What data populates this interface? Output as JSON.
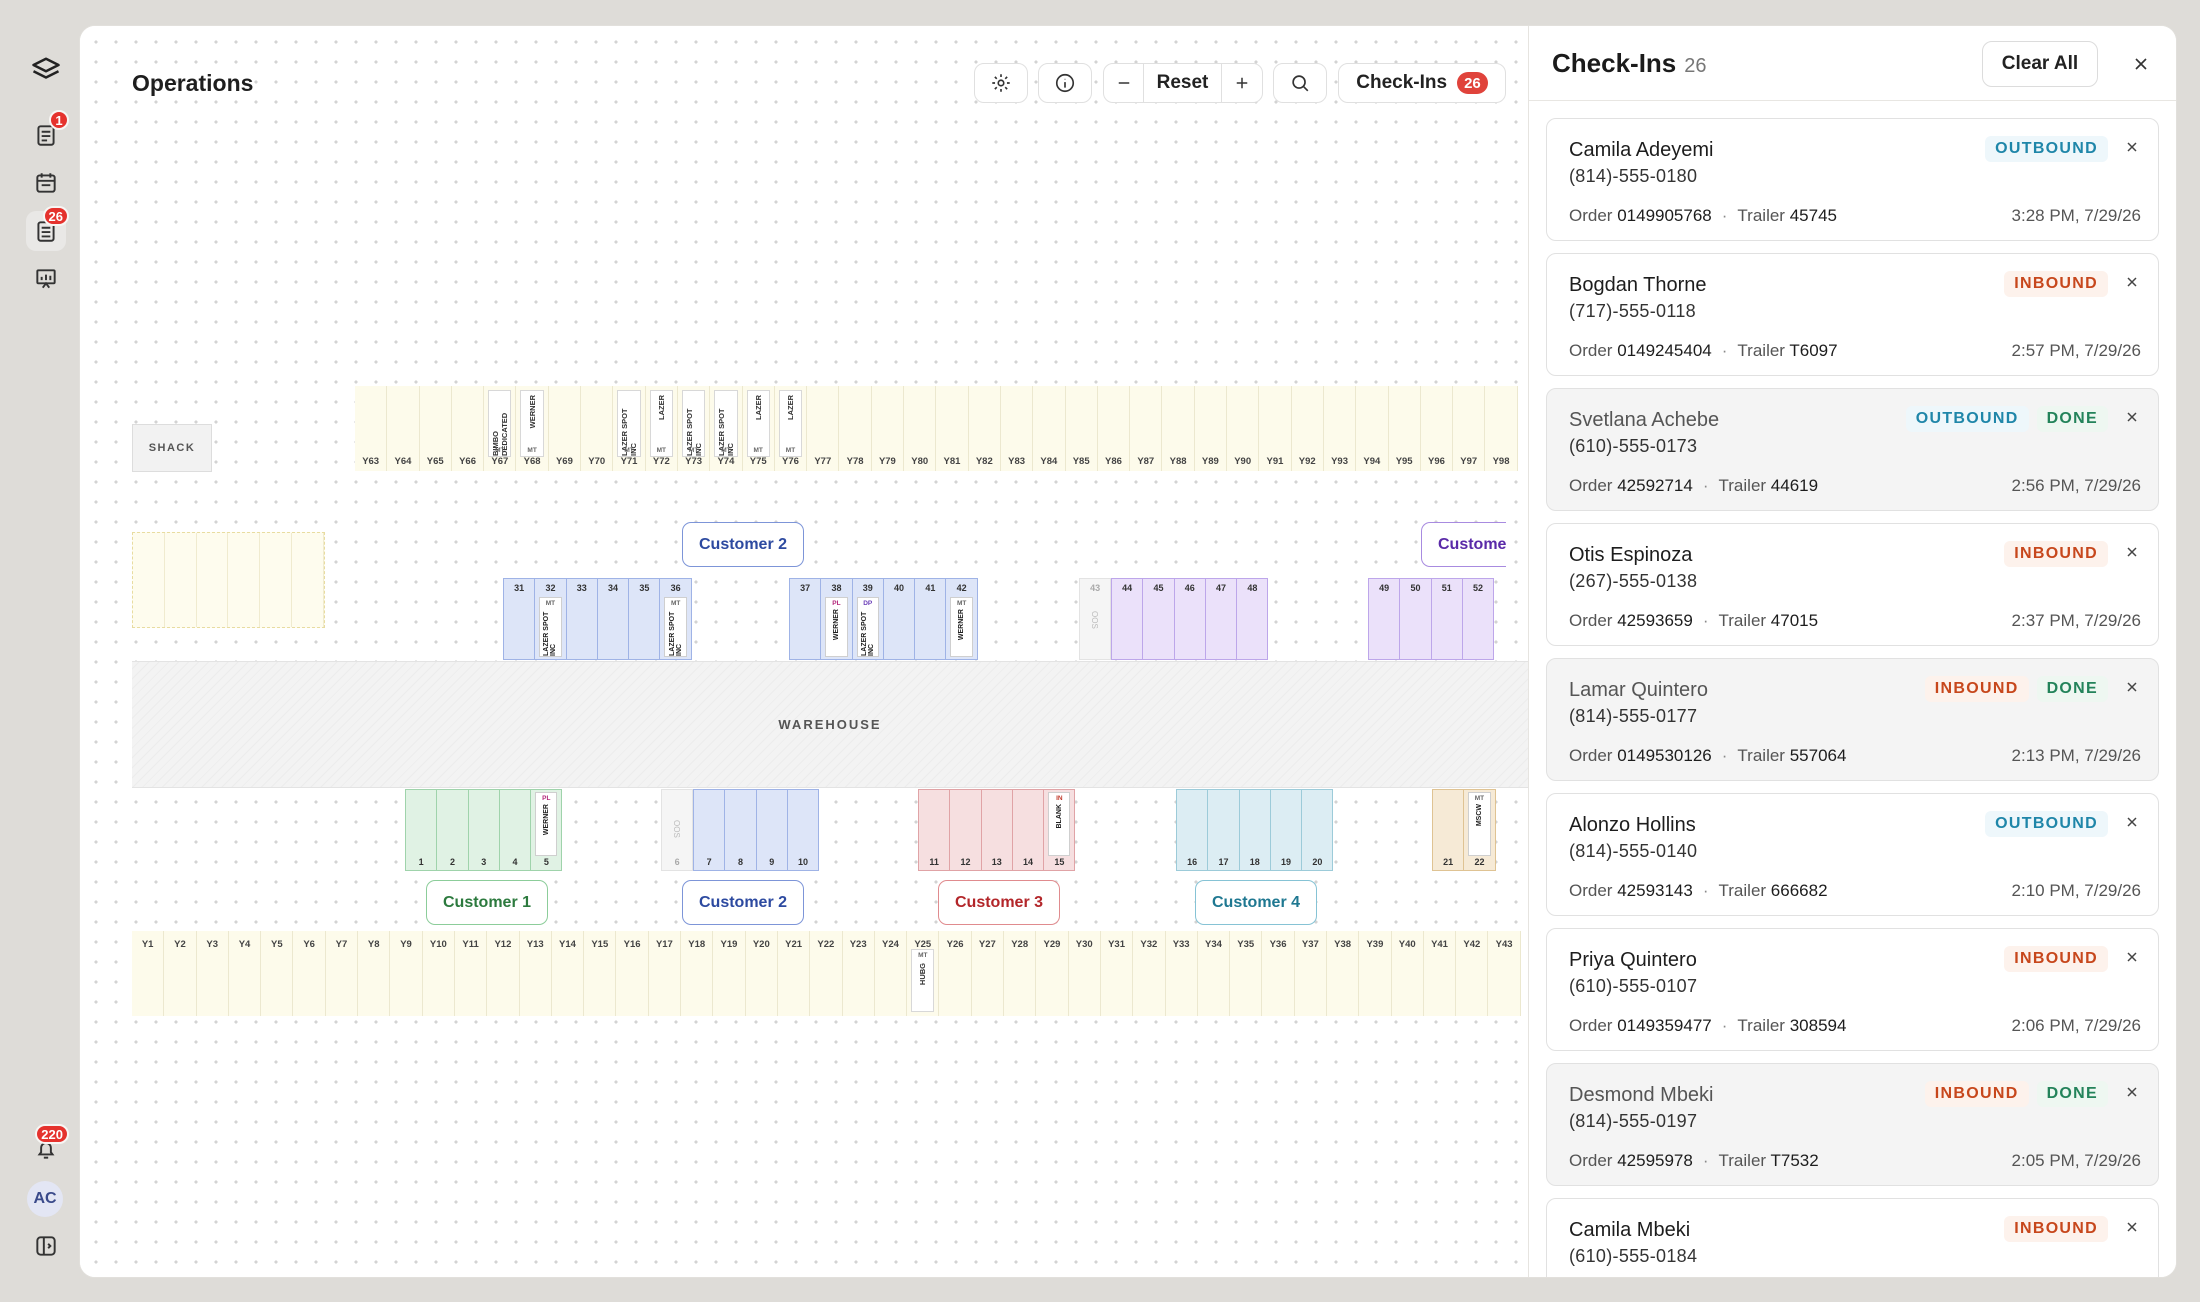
{
  "ops": {
    "title": "Operations",
    "toolbar": {
      "reset_label": "Reset",
      "checkins_label": "Check-Ins",
      "checkins_count": "26"
    }
  },
  "rail": {
    "badge_checklist": "1",
    "badge_board": "26",
    "badge_alerts": "220",
    "avatar": "AC"
  },
  "map": {
    "shack_label": "SHACK",
    "warehouse_label": "WAREHOUSE",
    "top_yard": [
      "Y63",
      "Y64",
      "Y65",
      "Y66",
      "Y67",
      "Y68",
      "Y69",
      "Y70",
      "Y71",
      "Y72",
      "Y73",
      "Y74",
      "Y75",
      "Y76",
      "Y77",
      "Y78",
      "Y79",
      "Y80",
      "Y81",
      "Y82",
      "Y83",
      "Y84",
      "Y85",
      "Y86",
      "Y87",
      "Y88",
      "Y89",
      "Y90",
      "Y91",
      "Y92",
      "Y93",
      "Y94",
      "Y95",
      "Y96",
      "Y97",
      "Y98"
    ],
    "top_trailers": [
      {
        "slot": 4,
        "text": "BIMBO DEDICATED",
        "mt": "MT"
      },
      {
        "slot": 5,
        "text": "WERNER",
        "mt": "MT"
      },
      {
        "slot": 8,
        "text": "LAZER SPOT INC",
        "mt": "MT"
      },
      {
        "slot": 9,
        "text": "LAZER",
        "mt": "MT"
      },
      {
        "slot": 10,
        "text": "LAZER SPOT INC",
        "mt": "MT"
      },
      {
        "slot": 11,
        "text": "LAZER SPOT INC",
        "mt": "MT"
      },
      {
        "slot": 12,
        "text": "LAZER",
        "mt": "MT"
      },
      {
        "slot": 13,
        "text": "LAZER",
        "mt": "MT"
      }
    ],
    "bottom_yard": [
      "Y1",
      "Y2",
      "Y3",
      "Y4",
      "Y5",
      "Y6",
      "Y7",
      "Y8",
      "Y9",
      "Y10",
      "Y11",
      "Y12",
      "Y13",
      "Y14",
      "Y15",
      "Y16",
      "Y17",
      "Y18",
      "Y19",
      "Y20",
      "Y21",
      "Y22",
      "Y23",
      "Y24",
      "Y25",
      "Y26",
      "Y27",
      "Y28",
      "Y29",
      "Y30",
      "Y31",
      "Y32",
      "Y33",
      "Y34",
      "Y35",
      "Y36",
      "Y37",
      "Y38",
      "Y39",
      "Y40",
      "Y41",
      "Y42",
      "Y43"
    ],
    "bottom_trailers": [
      {
        "slot": 24,
        "text": "HUBG",
        "mt": "MT"
      }
    ],
    "customers": {
      "c1": "Customer 1",
      "c2": "Customer 2",
      "c3": "Customer 3",
      "c4": "Customer 4",
      "c5": "Custome"
    },
    "upper_docks": [
      {
        "doors": [
          "31",
          "32",
          "33",
          "34",
          "35",
          "36"
        ],
        "color": "#dde5f8",
        "border": "#9fb3e6"
      },
      {
        "doors": [
          "37",
          "38",
          "39",
          "40",
          "41",
          "42"
        ],
        "color": "#dde5f8",
        "border": "#9fb3e6"
      },
      {
        "doors": [
          "44",
          "45",
          "46",
          "47",
          "48"
        ],
        "color": "#ebe1fa",
        "border": "#bda6ea"
      },
      {
        "doors": [
          "49",
          "50",
          "51",
          "52"
        ],
        "color": "#ebe1fa",
        "border": "#bda6ea"
      }
    ],
    "lower_docks": [
      {
        "doors": [
          "1",
          "2",
          "3",
          "4",
          "5"
        ],
        "color": "#e0f2e4",
        "border": "#9fd3ab"
      },
      {
        "doors": [
          "7",
          "8",
          "9",
          "10"
        ],
        "color": "#dde5f8",
        "border": "#9fb3e6"
      },
      {
        "doors": [
          "11",
          "12",
          "13",
          "14",
          "15"
        ],
        "color": "#f6dfe0",
        "border": "#e0a3a6"
      },
      {
        "doors": [
          "16",
          "17",
          "18",
          "19",
          "20"
        ],
        "color": "#dcedf3",
        "border": "#9ccbd9"
      },
      {
        "doors": [
          "21",
          "22"
        ],
        "color": "#f6ead6",
        "border": "#dfc393"
      }
    ],
    "door_oos_43": "43",
    "door_oos_6": "6",
    "oos_label": "OOS",
    "dock_trailers": {
      "d32": {
        "mt": "MT",
        "text": "LAZER SPOT INC"
      },
      "d36": {
        "mt": "MT",
        "text": "LAZER SPOT INC"
      },
      "d38": {
        "tag": "PL",
        "text": "WERNER"
      },
      "d39": {
        "tag": "DP",
        "text": "LAZER SPOT INC"
      },
      "d42": {
        "mt": "MT",
        "text": "WERNER"
      },
      "d5": {
        "tag": "PL",
        "text": "WERNER"
      },
      "d15": {
        "tag": "IN",
        "text": "BLANK"
      },
      "d22": {
        "mt": "MT",
        "text": "MSCW"
      }
    }
  },
  "panel": {
    "title": "Check-Ins",
    "count": "26",
    "clear_all": "Clear All",
    "order_label": "Order",
    "trailer_label": "Trailer",
    "items": [
      {
        "name": "Camila Adeyemi",
        "phone": "(814)-555-0180",
        "order": "0149905768",
        "trailer": "45745",
        "time": "3:28 PM, 7/29/26",
        "dir": "OUTBOUND",
        "done": ""
      },
      {
        "name": "Bogdan Thorne",
        "phone": "(717)-555-0118",
        "order": "0149245404",
        "trailer": "T6097",
        "time": "2:57 PM, 7/29/26",
        "dir": "INBOUND",
        "done": ""
      },
      {
        "name": "Svetlana Achebe",
        "phone": "(610)-555-0173",
        "order": "42592714",
        "trailer": "44619",
        "time": "2:56 PM, 7/29/26",
        "dir": "OUTBOUND",
        "done": "DONE"
      },
      {
        "name": "Otis Espinoza",
        "phone": "(267)-555-0138",
        "order": "42593659",
        "trailer": "47015",
        "time": "2:37 PM, 7/29/26",
        "dir": "INBOUND",
        "done": ""
      },
      {
        "name": "Lamar Quintero",
        "phone": "(814)-555-0177",
        "order": "0149530126",
        "trailer": "557064",
        "time": "2:13 PM, 7/29/26",
        "dir": "INBOUND",
        "done": "DONE"
      },
      {
        "name": "Alonzo Hollins",
        "phone": "(814)-555-0140",
        "order": "42593143",
        "trailer": "666682",
        "time": "2:10 PM, 7/29/26",
        "dir": "OUTBOUND",
        "done": ""
      },
      {
        "name": "Priya Quintero",
        "phone": "(610)-555-0107",
        "order": "0149359477",
        "trailer": "308594",
        "time": "2:06 PM, 7/29/26",
        "dir": "INBOUND",
        "done": ""
      },
      {
        "name": "Desmond Mbeki",
        "phone": "(814)-555-0197",
        "order": "42595978",
        "trailer": "T7532",
        "time": "2:05 PM, 7/29/26",
        "dir": "INBOUND",
        "done": "DONE"
      },
      {
        "name": "Camila Mbeki",
        "phone": "(610)-555-0184",
        "order": "",
        "trailer": "",
        "time": "",
        "dir": "INBOUND",
        "done": ""
      }
    ]
  }
}
